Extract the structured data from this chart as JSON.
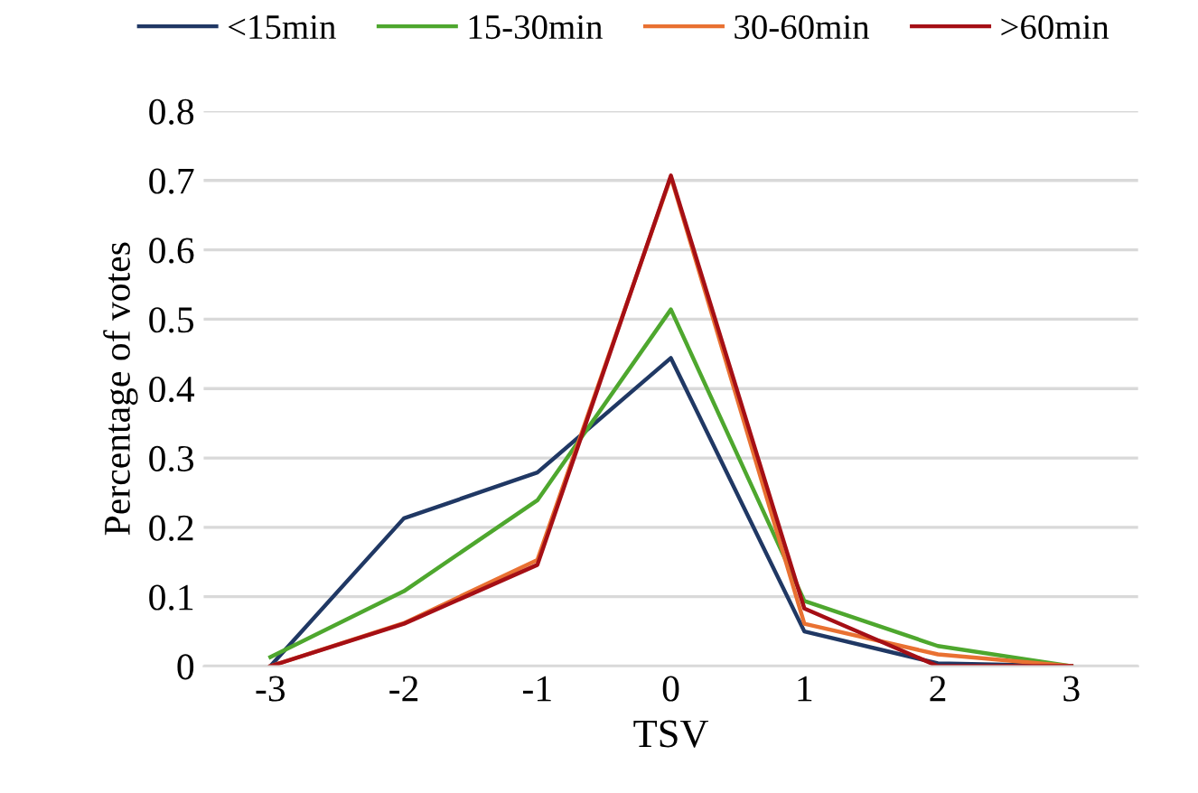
{
  "chart_data": {
    "type": "line",
    "xlabel": "TSV",
    "ylabel": "Percentage of votes",
    "categories": [
      "-3",
      "-2",
      "-1",
      "0",
      "1",
      "2",
      "3"
    ],
    "series": [
      {
        "name": "<15min",
        "color": "#203864",
        "values": [
          0,
          0.213,
          0.279,
          0.444,
          0.05,
          0.004,
          0
        ]
      },
      {
        "name": "15-30min",
        "color": "#4ea72e",
        "values": [
          0.013,
          0.108,
          0.239,
          0.514,
          0.094,
          0.029,
          0
        ]
      },
      {
        "name": "30-60min",
        "color": "#e97132",
        "values": [
          0,
          0.062,
          0.153,
          0.705,
          0.061,
          0.017,
          0
        ]
      },
      {
        "name": ">60min",
        "color": "#a50f15",
        "values": [
          0,
          0.061,
          0.146,
          0.707,
          0.083,
          0,
          0
        ]
      }
    ],
    "ylim": [
      0,
      0.8
    ],
    "yticks": [
      {
        "value": 0,
        "label": "0"
      },
      0.1,
      0.2,
      0.3,
      0.4,
      0.5,
      0.6,
      0.7,
      0.8
    ],
    "grid": "y",
    "legend": "top",
    "marker": "none",
    "line_style": "solid"
  }
}
